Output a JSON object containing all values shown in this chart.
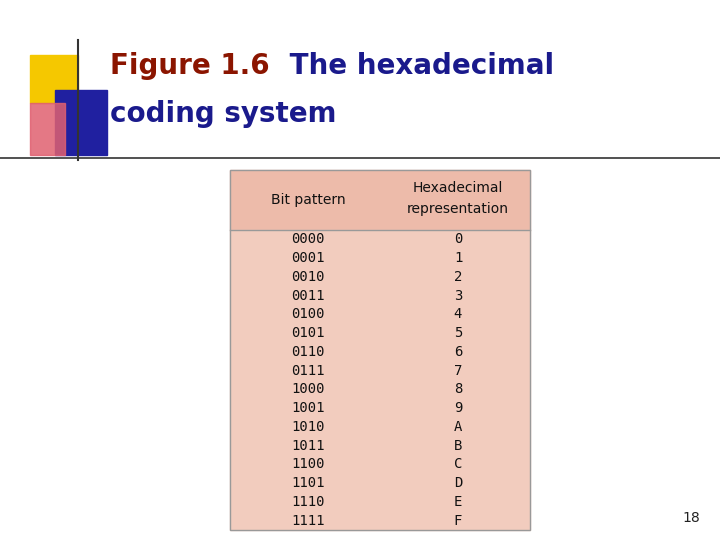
{
  "title_figure": "Figure 1.6",
  "title_rest": " The hexadecimal",
  "title_line2": "coding system",
  "title_color_figure": "#8B1500",
  "title_color_rest": "#1A1A8C",
  "page_number": "18",
  "bg_color": "#FFFFFF",
  "table_bg_header": "#EDBBAA",
  "table_bg_body": "#F2CCBe",
  "table_border_color": "#999999",
  "col1_header": "Bit pattern",
  "col2_header_line1": "Hexadecimal",
  "col2_header_line2": "representation",
  "bit_patterns": [
    "0000",
    "0001",
    "0010",
    "0011",
    "0100",
    "0101",
    "0110",
    "0111",
    "1000",
    "1001",
    "1010",
    "1011",
    "1100",
    "1101",
    "1110",
    "1111"
  ],
  "hex_values": [
    "0",
    "1",
    "2",
    "3",
    "4",
    "5",
    "6",
    "7",
    "8",
    "9",
    "A",
    "B",
    "C",
    "D",
    "E",
    "F"
  ],
  "font_size_title": 20,
  "font_size_table": 10,
  "font_size_page": 10,
  "logo_yellow": "#F5C800",
  "logo_blue": "#2020A0",
  "logo_red": "#E06070",
  "line_color": "#333333"
}
